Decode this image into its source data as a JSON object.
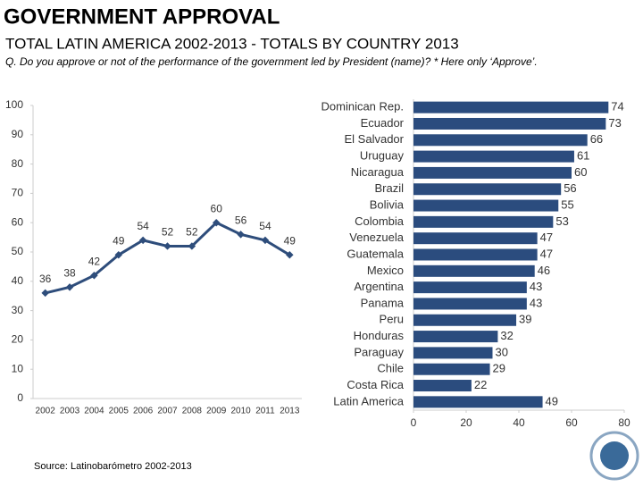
{
  "header": {
    "title": "GOVERNMENT APPROVAL",
    "subtitle": "TOTAL LATIN AMERICA 2002-2013 - TOTALS BY COUNTRY 2013",
    "question": "Q. Do you approve or not of the performance of the government led by President (name)? * Here only ‘Approve’."
  },
  "source": "Source: Latinobarómetro 2002-2013",
  "chart_data": [
    {
      "type": "line",
      "categories": [
        "2002",
        "2003",
        "2004",
        "2005",
        "2006",
        "2007",
        "2008",
        "2009",
        "2010",
        "2011",
        "2013"
      ],
      "values": [
        36,
        38,
        42,
        49,
        54,
        52,
        52,
        60,
        56,
        54,
        49
      ],
      "color": "#2e4d7b",
      "ylim": [
        0,
        100
      ],
      "yticks": [
        0,
        10,
        20,
        30,
        40,
        50,
        60,
        70,
        80,
        90,
        100
      ]
    },
    {
      "type": "hbar",
      "categories": [
        "Dominican Rep.",
        "Ecuador",
        "El Salvador",
        "Uruguay",
        "Nicaragua",
        "Brazil",
        "Bolivia",
        "Colombia",
        "Venezuela",
        "Guatemala",
        "Mexico",
        "Argentina",
        "Panama",
        "Peru",
        "Honduras",
        "Paraguay",
        "Chile",
        "Costa Rica",
        "Latin America"
      ],
      "values": [
        74,
        73,
        66,
        61,
        60,
        56,
        55,
        53,
        47,
        47,
        46,
        43,
        43,
        39,
        32,
        30,
        29,
        22,
        49
      ],
      "color": "#2b4c7e",
      "xlim": [
        0,
        80
      ],
      "xticks": [
        0,
        20,
        40,
        60,
        80
      ]
    }
  ]
}
